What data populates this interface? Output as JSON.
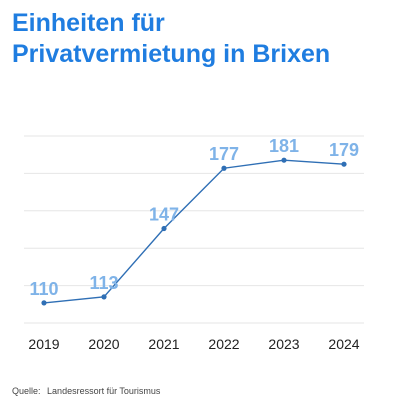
{
  "title_line1": "Einheiten für",
  "title_line2": "Privatvermietung in Brixen",
  "source_label": "Quelle:",
  "source_text": "Landesressort für Tourismus",
  "colors": {
    "title": "#1f7de0",
    "line": "#2f6fb5",
    "labels": "#7fb3e8",
    "grid": "#e6e6e6"
  },
  "chart_data": {
    "type": "line",
    "categories": [
      "2019",
      "2020",
      "2021",
      "2022",
      "2023",
      "2024"
    ],
    "series": [
      {
        "values": [
          110,
          113,
          147,
          177,
          181,
          179
        ]
      }
    ],
    "value_labels": [
      "110",
      "113",
      "147",
      "177",
      "181",
      "179"
    ],
    "ylim": [
      100,
      200
    ],
    "grid": true,
    "title": "Einheiten für Privatvermietung in Brixen",
    "xlabel": "",
    "ylabel": ""
  }
}
